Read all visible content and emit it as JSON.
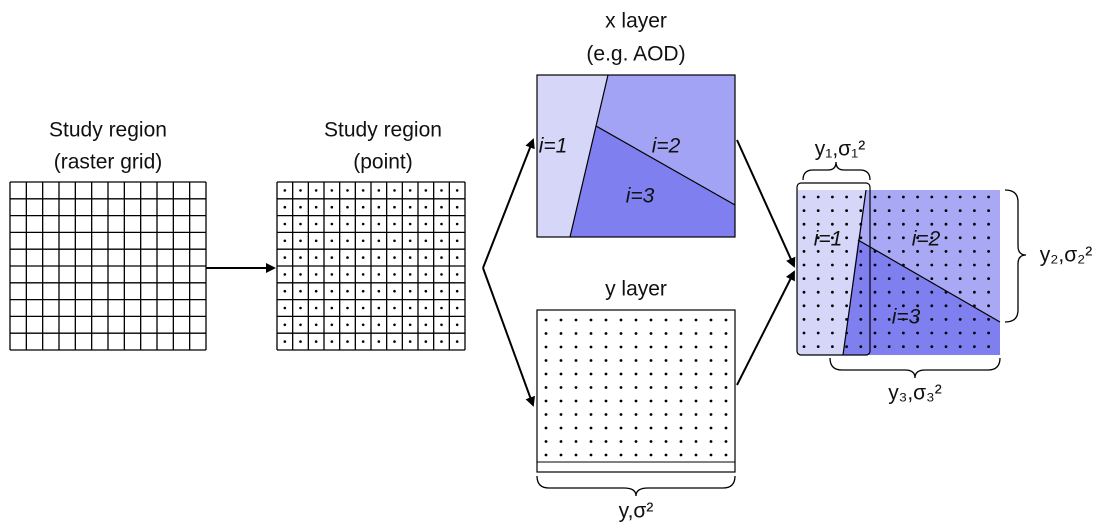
{
  "raster_panel": {
    "title": "Study region",
    "subtitle": "(raster grid)"
  },
  "point_panel": {
    "title": "Study region",
    "subtitle": "(point)"
  },
  "x_layer": {
    "title": "x layer",
    "subtitle": "(e.g. AOD)",
    "regions": [
      "i=1",
      "i=2",
      "i=3"
    ]
  },
  "y_layer": {
    "title": "y layer",
    "label": "y,σ²"
  },
  "combined": {
    "regions": [
      "i=1",
      "i=2",
      "i=3"
    ],
    "labels": [
      "y₁,σ₁²",
      "y₂,σ₂²",
      "y₃,σ₃²"
    ]
  }
}
